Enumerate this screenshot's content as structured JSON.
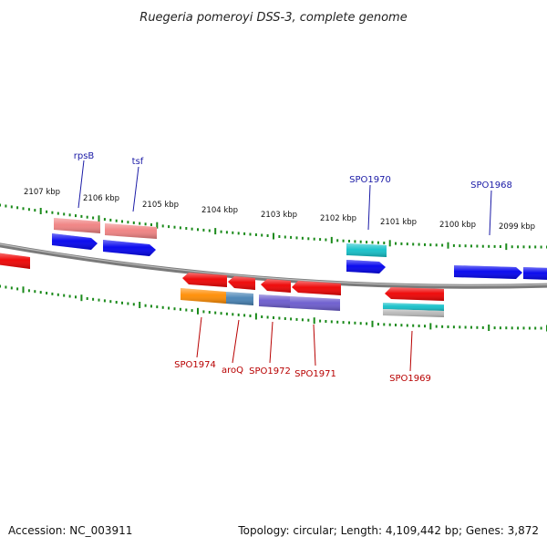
{
  "title": "Ruegeria pomeroyi DSS-3, complete genome",
  "accession": "Accession: NC_003911",
  "topology": "Topology: circular; Length: 4,109,442 bp; Genes: 3,872",
  "colors": {
    "backbone": "#7a7a7a",
    "ticks": "#1a8a1a",
    "forward_label": "#1a1aa6",
    "reverse_label": "#b80000",
    "red": "#ee0000",
    "pink": "#f08080",
    "blue": "#0000ee",
    "cyan": "#11c0c8",
    "orange": "#ff8c00",
    "steelblue": "#4682b4",
    "purple": "#6a5acd",
    "lightgray": "#b8b8b8"
  },
  "kbp_labels": [
    {
      "text": "2107 kbp"
    },
    {
      "text": "2106 kbp"
    },
    {
      "text": "2105 kbp"
    },
    {
      "text": "2104 kbp"
    },
    {
      "text": "2103 kbp"
    },
    {
      "text": "2102 kbp"
    },
    {
      "text": "2101 kbp"
    },
    {
      "text": "2100 kbp"
    },
    {
      "text": "2099 kbp"
    }
  ],
  "gene_labels": [
    {
      "text": "rpsB",
      "strand": "forward"
    },
    {
      "text": "tsf",
      "strand": "forward"
    },
    {
      "text": "SPO1970",
      "strand": "forward"
    },
    {
      "text": "SPO1968",
      "strand": "forward"
    },
    {
      "text": "SPO1974",
      "strand": "reverse"
    },
    {
      "text": "aroQ",
      "strand": "reverse"
    },
    {
      "text": "SPO1972",
      "strand": "reverse"
    },
    {
      "text": "SPO1971",
      "strand": "reverse"
    },
    {
      "text": "SPO1969",
      "strand": "reverse"
    }
  ]
}
